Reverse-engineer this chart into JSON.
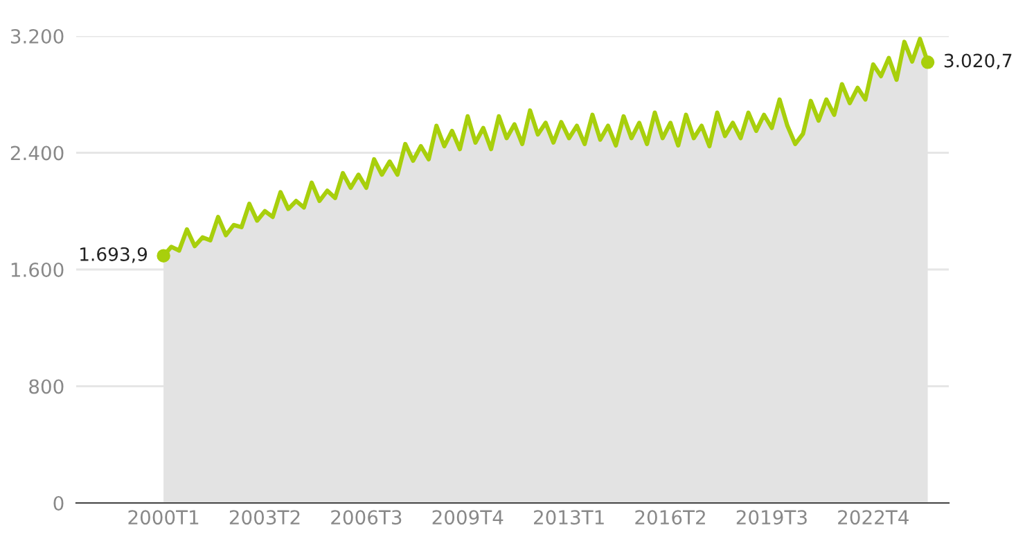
{
  "chart_data": {
    "type": "area",
    "categories": [
      "2000T1",
      null,
      null,
      null,
      null,
      null,
      null,
      null,
      null,
      null,
      null,
      null,
      null,
      "2003T2",
      null,
      null,
      null,
      null,
      null,
      null,
      null,
      null,
      null,
      null,
      null,
      null,
      "2006T3",
      null,
      null,
      null,
      null,
      null,
      null,
      null,
      null,
      null,
      null,
      null,
      null,
      "2009T4",
      null,
      null,
      null,
      null,
      null,
      null,
      null,
      null,
      null,
      null,
      null,
      null,
      "2013T1",
      null,
      null,
      null,
      null,
      null,
      null,
      null,
      null,
      null,
      null,
      null,
      null,
      "2016T2",
      null,
      null,
      null,
      null,
      null,
      null,
      null,
      null,
      null,
      null,
      null,
      null,
      "2019T3",
      null,
      null,
      null,
      null,
      null,
      null,
      null,
      null,
      null,
      null,
      null,
      null,
      "2022T4",
      null,
      null,
      null,
      null,
      null,
      null,
      null
    ],
    "series": [
      {
        "color": "#a8cf0c",
        "values": [
          1693.9,
          1755,
          1730,
          1875,
          1760,
          1820,
          1800,
          1960,
          1835,
          1905,
          1890,
          2050,
          1935,
          2000,
          1960,
          2130,
          2015,
          2070,
          2025,
          2195,
          2070,
          2140,
          2090,
          2260,
          2160,
          2250,
          2160,
          2355,
          2250,
          2340,
          2250,
          2460,
          2345,
          2445,
          2355,
          2585,
          2445,
          2550,
          2425,
          2650,
          2470,
          2570,
          2425,
          2650,
          2500,
          2595,
          2460,
          2690,
          2525,
          2605,
          2470,
          2610,
          2500,
          2585,
          2460,
          2660,
          2490,
          2585,
          2450,
          2650,
          2500,
          2605,
          2460,
          2675,
          2500,
          2605,
          2450,
          2660,
          2500,
          2585,
          2445,
          2675,
          2515,
          2605,
          2500,
          2675,
          2550,
          2660,
          2570,
          2765,
          2585,
          2460,
          2530,
          2755,
          2620,
          2765,
          2660,
          2870,
          2740,
          2845,
          2765,
          3005,
          2925,
          3050,
          2900,
          3160,
          3025,
          3180,
          3020.7
        ],
        "value_labels": [
          "1.693,9",
          null,
          null,
          null,
          null,
          null,
          null,
          null,
          null,
          null,
          null,
          null,
          null,
          null,
          null,
          null,
          null,
          null,
          null,
          null,
          null,
          null,
          null,
          null,
          null,
          null,
          null,
          null,
          null,
          null,
          null,
          null,
          null,
          null,
          null,
          null,
          null,
          null,
          null,
          null,
          null,
          null,
          null,
          null,
          null,
          null,
          null,
          null,
          null,
          null,
          null,
          null,
          null,
          null,
          null,
          null,
          null,
          null,
          null,
          null,
          null,
          null,
          null,
          null,
          null,
          null,
          null,
          null,
          null,
          null,
          null,
          null,
          null,
          null,
          null,
          null,
          null,
          null,
          null,
          null,
          null,
          null,
          null,
          null,
          null,
          null,
          null,
          null,
          null,
          null,
          null,
          null,
          null,
          null,
          null,
          null,
          null,
          null,
          "3.020,7"
        ]
      }
    ],
    "ylim": [
      0,
      3200
    ],
    "yticks": [
      0,
      800,
      {
        "value": 1600,
        "label": "1.600"
      },
      {
        "value": 2400,
        "label": "2.400"
      },
      {
        "value": 3200,
        "label": "3.200"
      }
    ],
    "grid": "y"
  }
}
